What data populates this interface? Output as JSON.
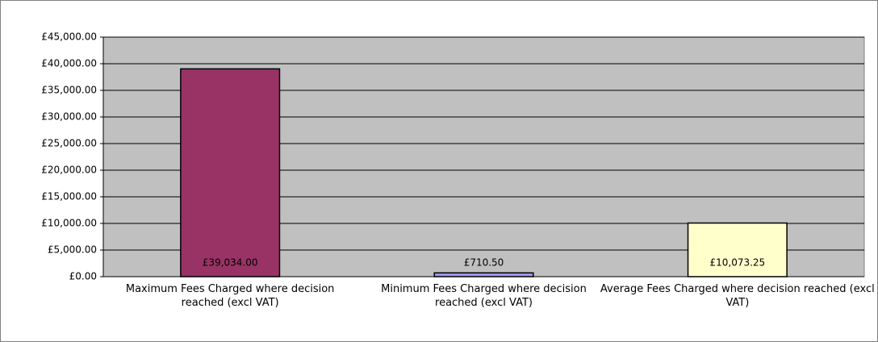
{
  "chart_data": {
    "type": "bar",
    "categories": [
      "Maximum Fees Charged where decision reached (excl VAT)",
      "Minimum Fees Charged where decision reached (excl VAT)",
      "Average Fees Charged where decision reached (excl VAT)"
    ],
    "values": [
      39034,
      710.5,
      10073.25
    ],
    "value_labels": [
      "£39,034.00",
      "£710.50",
      "£10,073.25"
    ],
    "colors": [
      "#993366",
      "#9999ff",
      "#ffffcc"
    ],
    "ylim": [
      0,
      45000
    ],
    "yticks": [
      {
        "value": 0,
        "label": "£0.00"
      },
      {
        "value": 5000,
        "label": "£5,000.00"
      },
      {
        "value": 10000,
        "label": "£10,000.00"
      },
      {
        "value": 15000,
        "label": "£15,000.00"
      },
      {
        "value": 20000,
        "label": "£20,000.00"
      },
      {
        "value": 25000,
        "label": "£25,000.00"
      },
      {
        "value": 30000,
        "label": "£30,000.00"
      },
      {
        "value": 35000,
        "label": "£35,000.00"
      },
      {
        "value": 40000,
        "label": "£40,000.00"
      },
      {
        "value": 45000,
        "label": "£45,000.00"
      }
    ],
    "grid": true
  }
}
